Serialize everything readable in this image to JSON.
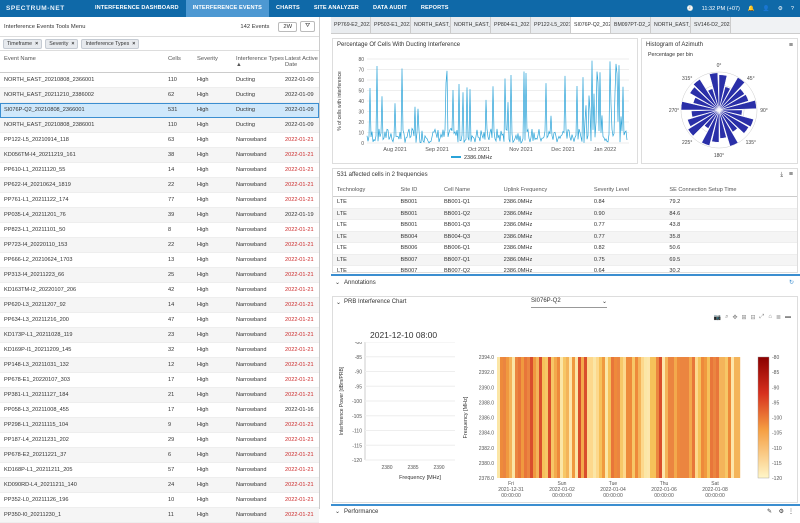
{
  "topbar": {
    "logo": "SPECTRUM-NET",
    "nav": [
      "INTERFERENCE DASHBOARD",
      "INTERFERENCE EVENTS",
      "CHARTS",
      "SITE ANALYZER",
      "DATA AUDIT",
      "REPORTS"
    ],
    "active_nav": 1,
    "time": "11:32 PM (+07)",
    "icons": [
      "clock-icon",
      "bell-icon",
      "user-icon",
      "gear-icon",
      "help-icon"
    ]
  },
  "events_panel": {
    "title": "Interference Events Tools Menu",
    "count": "142 Events",
    "range_btn": "2W",
    "filters": [
      "Timeframe",
      "Severity",
      "Interference Types"
    ],
    "columns": [
      "Event Name",
      "Cells",
      "Severity",
      "Interference Types",
      "Latest Active Date"
    ],
    "rows": [
      [
        "NORTH_EAST_20210808_2366001",
        "110",
        "High",
        "Ducting",
        "2022-01-09"
      ],
      [
        "NORTH_EAST_20211210_2386002",
        "62",
        "High",
        "Ducting",
        "2022-01-09"
      ],
      [
        "SI076P-Q2_20210808_2366001",
        "531",
        "High",
        "Ducting",
        "2022-01-09"
      ],
      [
        "NORTH_EAST_20210808_2386001",
        "110",
        "High",
        "Ducting",
        "2022-01-09"
      ],
      [
        "PP122-L5_20210914_118",
        "63",
        "High",
        "Narrowband",
        "2022-01-21"
      ],
      [
        "KD056TM-I4_20211219_161",
        "38",
        "High",
        "Narrowband",
        "2022-01-21"
      ],
      [
        "PP610-L1_20211120_55",
        "14",
        "High",
        "Narrowband",
        "2022-01-21"
      ],
      [
        "PP622-I4_20210624_1819",
        "22",
        "High",
        "Narrowband",
        "2022-01-21"
      ],
      [
        "PP761-L1_20211122_174",
        "77",
        "High",
        "Narrowband",
        "2022-01-21"
      ],
      [
        "PP035-L4_20211201_76",
        "39",
        "High",
        "Narrowband",
        "2022-01-19"
      ],
      [
        "PP823-L1_20211101_50",
        "8",
        "High",
        "Narrowband",
        "2022-01-21"
      ],
      [
        "PP723-I4_20220110_153",
        "22",
        "High",
        "Narrowband",
        "2022-01-21"
      ],
      [
        "PP666-L2_20210624_1703",
        "13",
        "High",
        "Narrowband",
        "2022-01-21"
      ],
      [
        "PP313-I4_20211223_66",
        "25",
        "High",
        "Narrowband",
        "2022-01-21"
      ],
      [
        "KD163TM-I2_20220107_206",
        "42",
        "High",
        "Narrowband",
        "2022-01-21"
      ],
      [
        "PP620-L3_20211207_92",
        "14",
        "High",
        "Narrowband",
        "2022-01-21"
      ],
      [
        "PP634-L3_20211216_200",
        "47",
        "High",
        "Narrowband",
        "2022-01-21"
      ],
      [
        "KD173P-L1_20211028_119",
        "23",
        "High",
        "Narrowband",
        "2022-01-21"
      ],
      [
        "KD169P-I1_20211209_145",
        "32",
        "High",
        "Narrowband",
        "2022-01-21"
      ],
      [
        "PP148-L3_20211031_132",
        "12",
        "High",
        "Narrowband",
        "2022-01-21"
      ],
      [
        "PP678-E1_20220107_303",
        "17",
        "High",
        "Narrowband",
        "2022-01-21"
      ],
      [
        "PP381-L1_20211127_184",
        "21",
        "High",
        "Narrowband",
        "2022-01-21"
      ],
      [
        "PP058-L3_20211008_455",
        "17",
        "High",
        "Narrowband",
        "2022-01-16"
      ],
      [
        "PP298-L1_20211115_104",
        "9",
        "High",
        "Narrowband",
        "2022-01-21"
      ],
      [
        "PP187-L4_20211231_202",
        "29",
        "High",
        "Narrowband",
        "2022-01-21"
      ],
      [
        "PP678-E2_20211221_37",
        "6",
        "High",
        "Narrowband",
        "2022-01-21"
      ],
      [
        "KD168P-L1_20211211_205",
        "57",
        "High",
        "Narrowband",
        "2022-01-21"
      ],
      [
        "KD090RD-L4_20211211_140",
        "24",
        "High",
        "Narrowband",
        "2022-01-21"
      ],
      [
        "PP352-L0_20211126_196",
        "10",
        "High",
        "Narrowband",
        "2022-01-21"
      ],
      [
        "PP350-I0_20211230_1",
        "11",
        "High",
        "Narrowband",
        "2022-01-21"
      ]
    ],
    "selected_row": 2
  },
  "tabs": [
    "PP769-E2_2022...",
    "PP503-E1_2022...",
    "NORTH_EAST_2...",
    "NORTH_EAST_2...",
    "PP804-E1_2021...",
    "PP122-L5_2021...",
    "SI076P-Q2_202...",
    "BM097PT-D2_2...",
    "NORTH_EAST_2...",
    "SV146-D2_2022..."
  ],
  "active_tab": 6,
  "ducting_chart": {
    "title": "Percentage Of Cells With Ducting Interference",
    "chart_data": {
      "type": "line",
      "title": "Percentage Of Cells With Ducting Interference",
      "ylabel": "% of cells with interference",
      "x_ticks": [
        "Aug 2021",
        "Sep 2021",
        "Oct 2021",
        "Nov 2021",
        "Dec 2021",
        "Jan 2022"
      ],
      "y_ticks": [
        "0",
        "10",
        "20",
        "30",
        "40",
        "50",
        "60",
        "70",
        "80"
      ],
      "ylim": [
        0,
        80
      ],
      "series": [
        {
          "name": "2386.0MHz"
        }
      ]
    }
  },
  "azimuth_chart": {
    "title": "Histogram of Azimuth",
    "subtitle": "Percentage per bin",
    "labels": [
      "0°",
      "45°",
      "90°",
      "135°",
      "180°",
      "225°",
      "270°",
      "315°"
    ]
  },
  "cells_table": {
    "title": "531 affected cells in 2 frequencies",
    "columns": [
      "Technology",
      "Site ID",
      "Cell Name",
      "Uplink Frequency",
      "Severity Level",
      "SE Connection Setup Time"
    ],
    "rows": [
      [
        "LTE",
        "BB001",
        "BB001-Q1",
        "2386.0MHz",
        "0.84",
        "79.2"
      ],
      [
        "LTE",
        "BB001",
        "BB001-Q2",
        "2386.0MHz",
        "0.90",
        "84.6"
      ],
      [
        "LTE",
        "BB001",
        "BB001-Q3",
        "2386.0MHz",
        "0.77",
        "43.8"
      ],
      [
        "LTE",
        "BB004",
        "BB004-Q3",
        "2386.0MHz",
        "0.77",
        "35.8"
      ],
      [
        "LTE",
        "BB006",
        "BB006-Q1",
        "2386.0MHz",
        "0.82",
        "50.6"
      ],
      [
        "LTE",
        "BB007",
        "BB007-Q1",
        "2386.0MHz",
        "0.75",
        "69.5"
      ],
      [
        "LTE",
        "BB007",
        "BB007-Q2",
        "2386.0MHz",
        "0.64",
        "30.2"
      ]
    ]
  },
  "annotations_label": "Annotations",
  "prb_chart": {
    "title": "PRB Interference Chart",
    "cell_select": "SI076P-Q2",
    "timestamp": "2021-12-10 08:00",
    "left_chart": {
      "chart_data": {
        "type": "line",
        "xlabel": "Frequency [MHz]",
        "ylabel": "Interference Power [dBm/PRB]",
        "x_ticks": [
          "2380",
          "2385",
          "2390"
        ],
        "y_ticks": [
          "-80",
          "-85",
          "-90",
          "-95",
          "-100",
          "-105",
          "-110",
          "-115",
          "-120"
        ],
        "ylim": [
          -120,
          -80
        ]
      }
    },
    "heatmap": {
      "chart_data": {
        "type": "heatmap",
        "ylabel": "Frequency [MHz]",
        "y_ticks": [
          "2394.0",
          "2392.0",
          "2390.0",
          "2388.0",
          "2386.0",
          "2384.0",
          "2382.0",
          "2380.0",
          "2378.0"
        ],
        "x_ticks": [
          [
            "Fri",
            "2021-12-31",
            "00:00:00"
          ],
          [
            "Sun",
            "2022-01-02",
            "00:00:00"
          ],
          [
            "Tue",
            "2022-01-04",
            "00:00:00"
          ],
          [
            "Thu",
            "2022-01-06",
            "00:00:00"
          ],
          [
            "Sat",
            "2022-01-08",
            "00:00:00"
          ]
        ],
        "colorbar_ticks": [
          "-80",
          "-85",
          "-90",
          "-95",
          "-100",
          "-105",
          "-110",
          "-115",
          "-120"
        ],
        "colorbar_range": [
          -120,
          -80
        ]
      }
    }
  },
  "performance_label": "Performance"
}
